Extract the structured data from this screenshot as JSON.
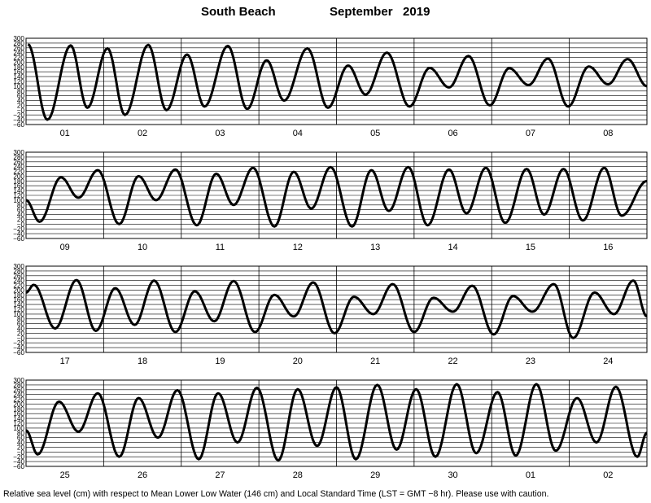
{
  "title": {
    "location": "South Beach",
    "month": "September",
    "year": "2019"
  },
  "footer": "Relative sea level (cm) with respect to Mean Lower Low Water (146 cm) and Local Standard Time (LST = GMT −8 hr). Please use with caution.",
  "chart_data": {
    "type": "line",
    "title": "South Beach September 2019",
    "xlabel": "",
    "ylabel": "",
    "ylim": [
      -60,
      300
    ],
    "yticks": [
      -60,
      -40,
      -20,
      0,
      20,
      40,
      60,
      80,
      100,
      120,
      140,
      160,
      180,
      200,
      220,
      240,
      260,
      280,
      300
    ],
    "ytick_labels": [
      "−60",
      "−40",
      "−20",
      "−0",
      "20",
      "40",
      "60",
      "80",
      "100",
      "120",
      "140",
      "160",
      "180",
      "200",
      "220",
      "240",
      "260",
      "280",
      "300"
    ],
    "grid": true,
    "line_color": "#000000",
    "panels": [
      {
        "days": [
          "01",
          "02",
          "03",
          "04",
          "05",
          "06",
          "07",
          "08"
        ],
        "extrema": [
          {
            "t": 0.05,
            "v": 275
          },
          {
            "t": 0.55,
            "v": -40
          },
          {
            "t": 1.15,
            "v": 270
          },
          {
            "t": 1.58,
            "v": 10
          },
          {
            "t": 2.1,
            "v": 258
          },
          {
            "t": 2.55,
            "v": -20
          },
          {
            "t": 3.15,
            "v": 272
          },
          {
            "t": 3.62,
            "v": 0
          },
          {
            "t": 4.15,
            "v": 232
          },
          {
            "t": 4.6,
            "v": 15
          },
          {
            "t": 5.2,
            "v": 268
          },
          {
            "t": 5.7,
            "v": 5
          },
          {
            "t": 6.2,
            "v": 208
          },
          {
            "t": 6.65,
            "v": 40
          },
          {
            "t": 7.25,
            "v": 258
          },
          {
            "t": 7.78,
            "v": 10
          },
          {
            "t": 8.3,
            "v": 186
          },
          {
            "t": 8.75,
            "v": 65
          },
          {
            "t": 9.3,
            "v": 240
          },
          {
            "t": 9.88,
            "v": 15
          },
          {
            "t": 10.4,
            "v": 176
          },
          {
            "t": 10.9,
            "v": 95
          },
          {
            "t": 11.4,
            "v": 226
          },
          {
            "t": 11.95,
            "v": 20
          },
          {
            "t": 12.45,
            "v": 175
          },
          {
            "t": 12.95,
            "v": 105
          },
          {
            "t": 13.45,
            "v": 215
          },
          {
            "t": 13.97,
            "v": 15
          },
          {
            "t": 14.5,
            "v": 182
          },
          {
            "t": 15.0,
            "v": 108
          },
          {
            "t": 15.5,
            "v": 213
          },
          {
            "t": 16.0,
            "v": 100
          }
        ]
      },
      {
        "days": [
          "09",
          "10",
          "11",
          "12",
          "13",
          "14",
          "15",
          "16"
        ],
        "extrema": [
          {
            "t": 0.0,
            "v": 100
          },
          {
            "t": 0.35,
            "v": 10
          },
          {
            "t": 0.9,
            "v": 195
          },
          {
            "t": 1.35,
            "v": 110
          },
          {
            "t": 1.85,
            "v": 225
          },
          {
            "t": 2.4,
            "v": 0
          },
          {
            "t": 2.9,
            "v": 200
          },
          {
            "t": 3.35,
            "v": 100
          },
          {
            "t": 3.85,
            "v": 228
          },
          {
            "t": 4.4,
            "v": -5
          },
          {
            "t": 4.9,
            "v": 210
          },
          {
            "t": 5.35,
            "v": 80
          },
          {
            "t": 5.85,
            "v": 235
          },
          {
            "t": 6.4,
            "v": -10
          },
          {
            "t": 6.9,
            "v": 218
          },
          {
            "t": 7.35,
            "v": 65
          },
          {
            "t": 7.85,
            "v": 238
          },
          {
            "t": 8.4,
            "v": -10
          },
          {
            "t": 8.9,
            "v": 225
          },
          {
            "t": 9.35,
            "v": 55
          },
          {
            "t": 9.85,
            "v": 238
          },
          {
            "t": 10.35,
            "v": -5
          },
          {
            "t": 10.9,
            "v": 228
          },
          {
            "t": 11.35,
            "v": 45
          },
          {
            "t": 11.85,
            "v": 235
          },
          {
            "t": 12.35,
            "v": 5
          },
          {
            "t": 12.9,
            "v": 230
          },
          {
            "t": 13.35,
            "v": 40
          },
          {
            "t": 13.85,
            "v": 230
          },
          {
            "t": 14.35,
            "v": 15
          },
          {
            "t": 14.9,
            "v": 235
          },
          {
            "t": 15.35,
            "v": 35
          },
          {
            "t": 16.0,
            "v": 180
          }
        ]
      },
      {
        "days": [
          "17",
          "18",
          "19",
          "20",
          "21",
          "22",
          "23",
          "24"
        ],
        "extrema": [
          {
            "t": 0.0,
            "v": 190
          },
          {
            "t": 0.2,
            "v": 222
          },
          {
            "t": 0.75,
            "v": 40
          },
          {
            "t": 1.3,
            "v": 242
          },
          {
            "t": 1.8,
            "v": 30
          },
          {
            "t": 2.3,
            "v": 208
          },
          {
            "t": 2.8,
            "v": 55
          },
          {
            "t": 3.3,
            "v": 240
          },
          {
            "t": 3.85,
            "v": 25
          },
          {
            "t": 4.35,
            "v": 195
          },
          {
            "t": 4.85,
            "v": 70
          },
          {
            "t": 5.35,
            "v": 238
          },
          {
            "t": 5.9,
            "v": 25
          },
          {
            "t": 6.4,
            "v": 180
          },
          {
            "t": 6.9,
            "v": 90
          },
          {
            "t": 7.4,
            "v": 232
          },
          {
            "t": 7.95,
            "v": 20
          },
          {
            "t": 8.45,
            "v": 172
          },
          {
            "t": 8.95,
            "v": 100
          },
          {
            "t": 9.45,
            "v": 225
          },
          {
            "t": 10.0,
            "v": 25
          },
          {
            "t": 10.5,
            "v": 168
          },
          {
            "t": 11.0,
            "v": 110
          },
          {
            "t": 11.5,
            "v": 218
          },
          {
            "t": 12.05,
            "v": 15
          },
          {
            "t": 12.55,
            "v": 175
          },
          {
            "t": 13.05,
            "v": 110
          },
          {
            "t": 13.6,
            "v": 225
          },
          {
            "t": 14.1,
            "v": 0
          },
          {
            "t": 14.65,
            "v": 190
          },
          {
            "t": 15.15,
            "v": 100
          },
          {
            "t": 15.65,
            "v": 240
          },
          {
            "t": 16.0,
            "v": 90
          }
        ]
      },
      {
        "days": [
          "25",
          "26",
          "27",
          "28",
          "29",
          "30",
          "01",
          "02"
        ],
        "extrema": [
          {
            "t": 0.0,
            "v": 90
          },
          {
            "t": 0.3,
            "v": -10
          },
          {
            "t": 0.85,
            "v": 210
          },
          {
            "t": 1.35,
            "v": 85
          },
          {
            "t": 1.85,
            "v": 245
          },
          {
            "t": 2.4,
            "v": -20
          },
          {
            "t": 2.9,
            "v": 225
          },
          {
            "t": 3.4,
            "v": 60
          },
          {
            "t": 3.9,
            "v": 258
          },
          {
            "t": 4.45,
            "v": -30
          },
          {
            "t": 4.95,
            "v": 245
          },
          {
            "t": 5.45,
            "v": 40
          },
          {
            "t": 5.95,
            "v": 268
          },
          {
            "t": 6.5,
            "v": -35
          },
          {
            "t": 7.0,
            "v": 262
          },
          {
            "t": 7.5,
            "v": 25
          },
          {
            "t": 8.0,
            "v": 270
          },
          {
            "t": 8.5,
            "v": -30
          },
          {
            "t": 9.05,
            "v": 280
          },
          {
            "t": 9.55,
            "v": 10
          },
          {
            "t": 10.05,
            "v": 262
          },
          {
            "t": 10.55,
            "v": -20
          },
          {
            "t": 11.1,
            "v": 283
          },
          {
            "t": 11.6,
            "v": -5
          },
          {
            "t": 12.15,
            "v": 250
          },
          {
            "t": 12.62,
            "v": -15
          },
          {
            "t": 13.15,
            "v": 283
          },
          {
            "t": 13.65,
            "v": 5
          },
          {
            "t": 14.2,
            "v": 225
          },
          {
            "t": 14.7,
            "v": 40
          },
          {
            "t": 15.2,
            "v": 272
          },
          {
            "t": 15.75,
            "v": -20
          },
          {
            "t": 16.0,
            "v": 80
          }
        ]
      }
    ]
  }
}
